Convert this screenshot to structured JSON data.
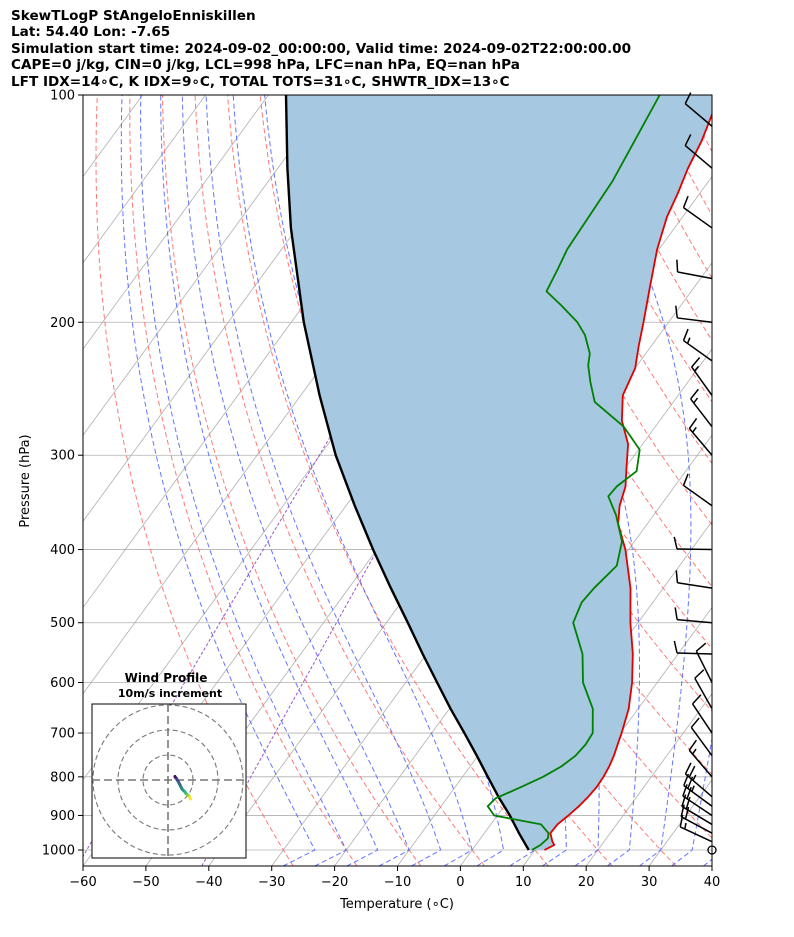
{
  "header": {
    "title": "SkewTLogP StAngeloEnniskillen",
    "latlon": "Lat: 54.40   Lon: -7.65",
    "times": "Simulation start time: 2024-09-02_00:00:00, Valid time: 2024-09-02T22:00:00.00",
    "indices1": "CAPE=0 j/kg, CIN=0 j/kg, LCL=998 hPa, LFC=nan hPa, EQ=nan hPa",
    "indices2": "LFT IDX=14∘C, K IDX=9∘C, TOTAL TOTS=31∘C, SHWTR_IDX=13∘C"
  },
  "chart_data": {
    "type": "line",
    "xlabel": "Temperature (∘C)",
    "ylabel": "Pressure (hPa)",
    "xlim": [
      -60,
      40
    ],
    "ylim": [
      1050,
      100
    ],
    "y_scale": "log",
    "x_ticks": [
      -60,
      -50,
      -40,
      -30,
      -20,
      -10,
      0,
      10,
      20,
      30,
      40
    ],
    "y_ticks": [
      1000,
      900,
      800,
      700,
      600,
      500,
      400,
      300,
      200,
      100
    ],
    "grid": true,
    "colors": {
      "temperature": "#e00000",
      "dewpoint": "#008000",
      "parcel": "#000000",
      "shading": "#a6c8e0",
      "dry_adiabats": "#ff6a6a",
      "moist_adiabats": "#4a5cff",
      "mixing_ratio": "#9a55cc",
      "isotherms": "#aaaaaa"
    },
    "series": [
      {
        "key": "temperature",
        "values": [
          [
            1000,
            11.5
          ],
          [
            985,
            12.5
          ],
          [
            975,
            11.8
          ],
          [
            950,
            10.5
          ],
          [
            925,
            10.6
          ],
          [
            900,
            11.3
          ],
          [
            875,
            11.9
          ],
          [
            850,
            12.3
          ],
          [
            825,
            12.5
          ],
          [
            800,
            12.4
          ],
          [
            775,
            12.1
          ],
          [
            750,
            11.6
          ],
          [
            725,
            10.9
          ],
          [
            700,
            10.2
          ],
          [
            650,
            8.5
          ],
          [
            600,
            6.0
          ],
          [
            550,
            2.8
          ],
          [
            500,
            -1.2
          ],
          [
            450,
            -5.2
          ],
          [
            400,
            -10.5
          ],
          [
            370,
            -14.6
          ],
          [
            350,
            -16.5
          ],
          [
            330,
            -17.8
          ],
          [
            310,
            -20.0
          ],
          [
            290,
            -22.3
          ],
          [
            270,
            -26.0
          ],
          [
            250,
            -28.8
          ],
          [
            230,
            -30.0
          ],
          [
            215,
            -32.0
          ],
          [
            200,
            -34.0
          ],
          [
            180,
            -37.0
          ],
          [
            160,
            -40.3
          ],
          [
            145,
            -42.5
          ],
          [
            135,
            -43.5
          ],
          [
            125,
            -44.8
          ],
          [
            115,
            -45.8
          ],
          [
            105,
            -47.4
          ],
          [
            100,
            -48.2
          ]
        ]
      },
      {
        "key": "dewpoint",
        "values": [
          [
            1000,
            9.5
          ],
          [
            985,
            10.3
          ],
          [
            965,
            10.7
          ],
          [
            950,
            10.2
          ],
          [
            925,
            8.0
          ],
          [
            900,
            -0.5
          ],
          [
            875,
            -2.6
          ],
          [
            855,
            -2.3
          ],
          [
            825,
            0.5
          ],
          [
            800,
            2.8
          ],
          [
            775,
            4.5
          ],
          [
            750,
            5.5
          ],
          [
            725,
            5.8
          ],
          [
            700,
            5.6
          ],
          [
            650,
            2.8
          ],
          [
            600,
            -1.8
          ],
          [
            550,
            -5.2
          ],
          [
            500,
            -10.3
          ],
          [
            470,
            -11.3
          ],
          [
            450,
            -11.0
          ],
          [
            420,
            -10.0
          ],
          [
            390,
            -12.0
          ],
          [
            360,
            -16.0
          ],
          [
            340,
            -19.4
          ],
          [
            330,
            -19.2
          ],
          [
            315,
            -17.8
          ],
          [
            295,
            -19.8
          ],
          [
            275,
            -25.0
          ],
          [
            255,
            -32.5
          ],
          [
            240,
            -35.5
          ],
          [
            228,
            -37.8
          ],
          [
            220,
            -38.9
          ],
          [
            208,
            -41.8
          ],
          [
            200,
            -44.5
          ],
          [
            190,
            -49.0
          ],
          [
            182,
            -53.0
          ],
          [
            170,
            -53.8
          ],
          [
            160,
            -54.6
          ],
          [
            130,
            -55.3
          ],
          [
            100,
            -57.8
          ]
        ]
      },
      {
        "key": "parcel",
        "values": [
          [
            1000,
            9.0
          ],
          [
            950,
            5.5
          ],
          [
            900,
            2.0
          ],
          [
            850,
            -2.0
          ],
          [
            800,
            -6.0
          ],
          [
            750,
            -10.2
          ],
          [
            700,
            -14.8
          ],
          [
            650,
            -19.8
          ],
          [
            600,
            -25.0
          ],
          [
            550,
            -30.6
          ],
          [
            500,
            -36.6
          ],
          [
            450,
            -43.3
          ],
          [
            400,
            -50.6
          ],
          [
            350,
            -58.6
          ],
          [
            300,
            -67.5
          ],
          [
            250,
            -77.0
          ],
          [
            200,
            -88.0
          ],
          [
            150,
            -101.0
          ],
          [
            125,
            -108.5
          ],
          [
            100,
            -117.2
          ]
        ]
      }
    ],
    "wind_barbs": [
      {
        "p": 1000,
        "u": 5,
        "v": -5,
        "kt": 2
      },
      {
        "p": 975,
        "u": -15,
        "v": 7,
        "kt": 15
      },
      {
        "p": 950,
        "u": -15,
        "v": 8,
        "kt": 20
      },
      {
        "p": 925,
        "u": -15,
        "v": 9,
        "kt": 20
      },
      {
        "p": 900,
        "u": -15,
        "v": 10,
        "kt": 20
      },
      {
        "p": 875,
        "u": -15,
        "v": 11,
        "kt": 25
      },
      {
        "p": 850,
        "u": -14,
        "v": 12,
        "kt": 25
      },
      {
        "p": 800,
        "u": -12,
        "v": 14,
        "kt": 15
      },
      {
        "p": 750,
        "u": -11,
        "v": 15,
        "kt": 10
      },
      {
        "p": 700,
        "u": -10,
        "v": 15,
        "kt": 10
      },
      {
        "p": 650,
        "u": -9,
        "v": 16,
        "kt": 10
      },
      {
        "p": 600,
        "u": -8,
        "v": 16,
        "kt": 10
      },
      {
        "p": 550,
        "u": -18,
        "v": 0.5,
        "kt": 10
      },
      {
        "p": 500,
        "u": -17,
        "v": 1.5,
        "kt": 10
      },
      {
        "p": 450,
        "u": -16,
        "v": 2.5,
        "kt": 10
      },
      {
        "p": 400,
        "u": -18,
        "v": 0.3,
        "kt": 10
      },
      {
        "p": 350,
        "u": -14,
        "v": 10,
        "kt": 10
      },
      {
        "p": 300,
        "u": -11,
        "v": 13,
        "kt": 15
      },
      {
        "p": 275,
        "u": -10,
        "v": 13,
        "kt": 15
      },
      {
        "p": 250,
        "u": -10,
        "v": 14,
        "kt": 15
      },
      {
        "p": 225,
        "u": -14,
        "v": 10,
        "kt": 15
      },
      {
        "p": 200,
        "u": -16,
        "v": 2,
        "kt": 10
      },
      {
        "p": 175,
        "u": -16,
        "v": 3,
        "kt": 10
      },
      {
        "p": 150,
        "u": -14,
        "v": 10,
        "kt": 10
      },
      {
        "p": 125,
        "u": -13,
        "v": 11,
        "kt": 10
      },
      {
        "p": 110,
        "u": -13,
        "v": 11,
        "kt": 10
      }
    ],
    "inset": {
      "title": "Wind Profile",
      "subtitle": "10m/s increment",
      "rings_ms": [
        10,
        20,
        30
      ],
      "hodograph_colormap": "viridis",
      "hodograph": [
        [
          -2,
          -1.5
        ],
        [
          -1.5,
          -2.5
        ],
        [
          -1,
          -3
        ],
        [
          -0.5,
          -3.5
        ],
        [
          0,
          -4.5
        ],
        [
          1,
          -6
        ],
        [
          2,
          -8
        ],
        [
          3,
          -10
        ],
        [
          4,
          -12
        ],
        [
          5,
          -14
        ],
        [
          6,
          -15
        ],
        [
          7,
          -16
        ],
        [
          8,
          -17
        ],
        [
          9,
          -18.5
        ],
        [
          10,
          -19.5
        ],
        [
          11,
          -20
        ],
        [
          12,
          -21
        ],
        [
          12.5,
          -22
        ],
        [
          13,
          -22.5
        ],
        [
          13.5,
          -24
        ]
      ],
      "hodograph_units": "kt"
    }
  }
}
